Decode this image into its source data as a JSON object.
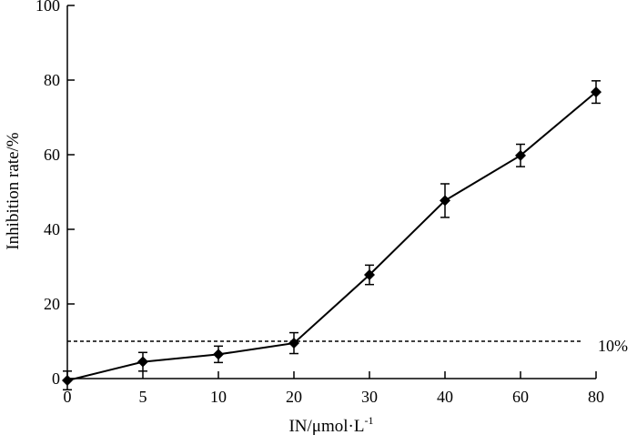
{
  "chart_data": {
    "type": "line",
    "x_axis_scale": "categorical (evenly spaced)",
    "categories": [
      "0",
      "5",
      "10",
      "20",
      "30",
      "40",
      "60",
      "80"
    ],
    "series": [
      {
        "values": [
          -0.5,
          4.5,
          6.5,
          9.5,
          27.8,
          47.7,
          59.8,
          76.8
        ],
        "errors": [
          2.5,
          2.5,
          2.2,
          2.8,
          2.6,
          4.5,
          3.0,
          3.0
        ],
        "marker": "diamond",
        "color": "#000000"
      }
    ],
    "reference_line": {
      "value": 10,
      "label": "10%",
      "style": "dashed"
    },
    "ylim": [
      0,
      100
    ],
    "yticks": [
      "0",
      "20",
      "40",
      "60",
      "80",
      "100"
    ],
    "xlabel": "IN/μmol·L",
    "xlabel_superscript": "-1",
    "ylabel": "Inhibition rate/%",
    "grid": false,
    "legend": "none"
  }
}
